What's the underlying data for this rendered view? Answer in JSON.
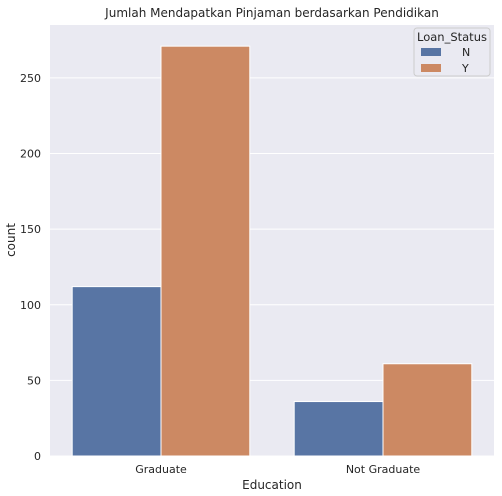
{
  "chart_data": {
    "type": "bar",
    "title": "Jumlah Mendapatkan Pinjaman berdasarkan Pendidikan",
    "xlabel": "Education",
    "ylabel": "count",
    "categories": [
      "Graduate",
      "Not Graduate"
    ],
    "series": [
      {
        "name": "N",
        "values": [
          112,
          36
        ],
        "color": "#5875a4"
      },
      {
        "name": "Y",
        "values": [
          271,
          61
        ],
        "color": "#cc8963"
      }
    ],
    "ylim": [
      0,
      285
    ],
    "yticks": [
      0,
      50,
      100,
      150,
      200,
      250
    ],
    "grid": true,
    "background": "#eaeaf2",
    "legend": {
      "title": "Loan_Status",
      "position": "top-right"
    }
  }
}
